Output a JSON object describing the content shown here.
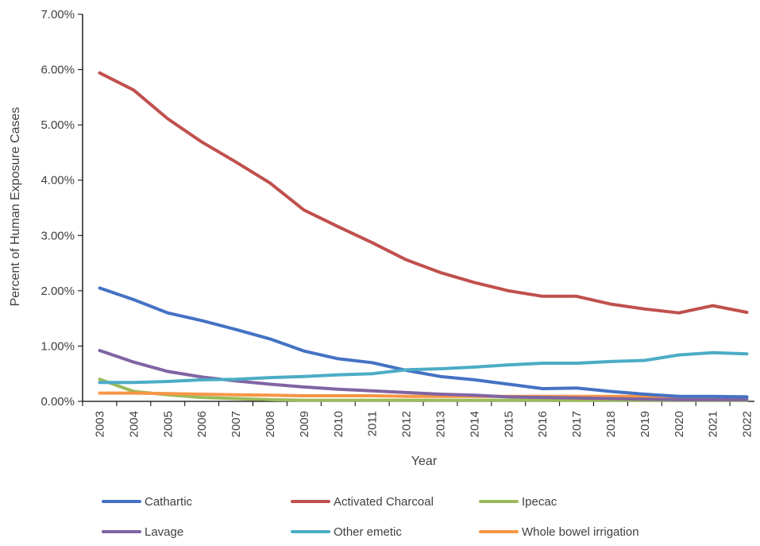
{
  "chart_data": {
    "type": "line",
    "title": "",
    "xlabel": "Year",
    "ylabel": "Percent of Human Exposure Cases",
    "ylim": [
      0,
      0.07
    ],
    "yticks": [
      "0.00%",
      "1.00%",
      "2.00%",
      "3.00%",
      "4.00%",
      "5.00%",
      "6.00%",
      "7.00%"
    ],
    "x": [
      "2003",
      "2004",
      "2005",
      "2006",
      "2007",
      "2008",
      "2009",
      "2010",
      "2011",
      "2012",
      "2013",
      "2014",
      "2015",
      "2016",
      "2017",
      "2018",
      "2019",
      "2020",
      "2021",
      "2022"
    ],
    "grid": false,
    "legend_position": "bottom",
    "series": [
      {
        "name": "Cathartic",
        "color": "#4472C4",
        "values": [
          0.0205,
          0.0184,
          0.016,
          0.0146,
          0.013,
          0.0113,
          0.0091,
          0.0077,
          0.007,
          0.0056,
          0.0045,
          0.0039,
          0.0031,
          0.0023,
          0.0024,
          0.0018,
          0.0013,
          0.0009,
          0.0009,
          0.0008
        ]
      },
      {
        "name": "Activated Charcoal",
        "color": "#C0504D",
        "values": [
          0.0594,
          0.0563,
          0.0511,
          0.0469,
          0.0433,
          0.0395,
          0.0346,
          0.0316,
          0.0287,
          0.0256,
          0.0233,
          0.0215,
          0.02,
          0.019,
          0.019,
          0.0176,
          0.0167,
          0.016,
          0.0173,
          0.0161
        ]
      },
      {
        "name": "Ipecac",
        "color": "#9BBB59",
        "values": [
          0.004,
          0.0018,
          0.0012,
          0.0007,
          0.0005,
          0.0003,
          0.0002,
          0.0002,
          0.0002,
          0.0002,
          0.0002,
          0.0002,
          0.0002,
          0.0002,
          0.0002,
          0.0002,
          0.0002,
          0.0002,
          0.0002,
          0.0002
        ]
      },
      {
        "name": "Lavage",
        "color": "#8064A2",
        "values": [
          0.0092,
          0.0071,
          0.0054,
          0.0044,
          0.0037,
          0.0031,
          0.0026,
          0.0022,
          0.0019,
          0.0016,
          0.0013,
          0.0011,
          0.0008,
          0.0007,
          0.0006,
          0.0005,
          0.0004,
          0.0003,
          0.0003,
          0.0003
        ]
      },
      {
        "name": "Other emetic",
        "color": "#4BACC6",
        "values": [
          0.0034,
          0.0034,
          0.0036,
          0.0039,
          0.004,
          0.0043,
          0.0045,
          0.0048,
          0.005,
          0.0057,
          0.0059,
          0.0062,
          0.0066,
          0.0069,
          0.0069,
          0.0072,
          0.0074,
          0.0084,
          0.0088,
          0.0086
        ]
      },
      {
        "name": "Whole bowel irrigation",
        "color": "#F79646",
        "values": [
          0.0015,
          0.0015,
          0.0014,
          0.0013,
          0.0012,
          0.0011,
          0.001,
          0.001,
          0.001,
          0.0009,
          0.0009,
          0.0009,
          0.0009,
          0.0009,
          0.0009,
          0.0009,
          0.0009,
          0.0008,
          0.0008,
          0.0008
        ]
      }
    ]
  }
}
